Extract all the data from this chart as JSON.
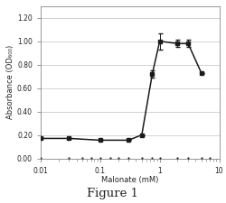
{
  "x_main": [
    0.01,
    0.03,
    0.1,
    0.3,
    0.5,
    0.75,
    1.0,
    2.0,
    3.0,
    5.0
  ],
  "y_main": [
    0.17,
    0.17,
    0.155,
    0.155,
    0.2,
    0.72,
    1.0,
    0.98,
    0.98,
    0.73
  ],
  "y_err_main": [
    0.0,
    0.0,
    0.0,
    0.0,
    0.0,
    0.03,
    0.07,
    0.03,
    0.03,
    0.0
  ],
  "x_flat": [
    0.01,
    0.03,
    0.05,
    0.07,
    0.1,
    0.15,
    0.2,
    0.3,
    0.5,
    0.75,
    1.0,
    2.0,
    3.0,
    5.0,
    7.0
  ],
  "y_flat": [
    0.005,
    0.005,
    0.005,
    0.005,
    0.005,
    0.005,
    0.005,
    0.005,
    0.005,
    0.005,
    0.005,
    0.005,
    0.005,
    0.005,
    0.005
  ],
  "line_color": "#1a1a1a",
  "flat_color": "#1a1a1a",
  "marker_main": "s",
  "marker_flat": ".",
  "xlim": [
    0.01,
    10
  ],
  "ylim": [
    0.0,
    1.3
  ],
  "yticks": [
    0.0,
    0.2,
    0.4,
    0.6,
    0.8,
    1.0,
    1.2
  ],
  "xtick_labels": [
    "0.01",
    "0.1",
    "1",
    "10"
  ],
  "xtick_vals": [
    0.01,
    0.1,
    1,
    10
  ],
  "xlabel": "Malonate (mM)",
  "ylabel": "Absorbance (OD",
  "ylabel_sub": "600",
  "ylabel_end": ")",
  "figure_label": "Figure 1",
  "bg_color": "#ffffff",
  "axis_fontsize": 6.0,
  "tick_fontsize": 5.5,
  "label_fontsize": 9.5,
  "grid_color": "#cccccc",
  "spine_color": "#888888"
}
